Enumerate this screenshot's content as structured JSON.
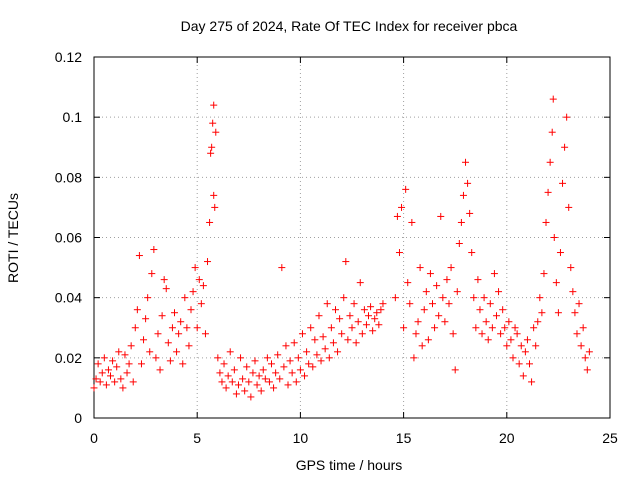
{
  "chart_data": {
    "type": "scatter",
    "title": "Day 275 of 2024, Rate Of TEC Index for receiver pbca",
    "xlabel": "GPS time / hours",
    "ylabel": "ROTI / TECUs",
    "xlim": [
      0,
      25
    ],
    "ylim": [
      0,
      0.12
    ],
    "xticks": [
      0,
      5,
      10,
      15,
      20,
      25
    ],
    "xtick_labels": [
      "0",
      "5",
      "10",
      "15",
      "20",
      "25"
    ],
    "yticks": [
      0,
      0.02,
      0.04,
      0.06,
      0.08,
      0.1,
      0.12
    ],
    "ytick_labels": [
      "0",
      "0.02",
      "0.04",
      "0.06",
      "0.08",
      "0.1",
      "0.12"
    ],
    "grid": true,
    "marker": "+",
    "color": "#ff0000",
    "series": [
      {
        "name": "ROTI",
        "points": [
          [
            0.0,
            0.01
          ],
          [
            0.1,
            0.013
          ],
          [
            0.2,
            0.018
          ],
          [
            0.3,
            0.012
          ],
          [
            0.4,
            0.015
          ],
          [
            0.5,
            0.02
          ],
          [
            0.6,
            0.011
          ],
          [
            0.7,
            0.016
          ],
          [
            0.8,
            0.014
          ],
          [
            0.9,
            0.019
          ],
          [
            1.0,
            0.012
          ],
          [
            1.1,
            0.017
          ],
          [
            1.2,
            0.022
          ],
          [
            1.3,
            0.013
          ],
          [
            1.4,
            0.01
          ],
          [
            1.5,
            0.021
          ],
          [
            1.6,
            0.015
          ],
          [
            1.7,
            0.018
          ],
          [
            1.8,
            0.024
          ],
          [
            1.9,
            0.012
          ],
          [
            2.0,
            0.03
          ],
          [
            2.1,
            0.036
          ],
          [
            2.2,
            0.054
          ],
          [
            2.3,
            0.018
          ],
          [
            2.4,
            0.026
          ],
          [
            2.5,
            0.033
          ],
          [
            2.6,
            0.04
          ],
          [
            2.7,
            0.022
          ],
          [
            2.8,
            0.048
          ],
          [
            2.9,
            0.056
          ],
          [
            3.0,
            0.02
          ],
          [
            3.1,
            0.028
          ],
          [
            3.2,
            0.016
          ],
          [
            3.3,
            0.034
          ],
          [
            3.4,
            0.046
          ],
          [
            3.5,
            0.043
          ],
          [
            3.6,
            0.025
          ],
          [
            3.7,
            0.019
          ],
          [
            3.8,
            0.03
          ],
          [
            3.9,
            0.035
          ],
          [
            4.0,
            0.022
          ],
          [
            4.1,
            0.028
          ],
          [
            4.2,
            0.032
          ],
          [
            4.3,
            0.018
          ],
          [
            4.4,
            0.04
          ],
          [
            4.5,
            0.03
          ],
          [
            4.6,
            0.024
          ],
          [
            4.7,
            0.036
          ],
          [
            4.8,
            0.042
          ],
          [
            4.9,
            0.05
          ],
          [
            5.0,
            0.03
          ],
          [
            5.1,
            0.046
          ],
          [
            5.2,
            0.038
          ],
          [
            5.3,
            0.044
          ],
          [
            5.4,
            0.028
          ],
          [
            5.5,
            0.052
          ],
          [
            5.6,
            0.065
          ],
          [
            5.7,
            0.09
          ],
          [
            5.8,
            0.104
          ],
          [
            5.9,
            0.095
          ],
          [
            5.65,
            0.088
          ],
          [
            5.75,
            0.098
          ],
          [
            5.8,
            0.074
          ],
          [
            5.85,
            0.07
          ],
          [
            6.0,
            0.02
          ],
          [
            6.1,
            0.015
          ],
          [
            6.2,
            0.012
          ],
          [
            6.3,
            0.018
          ],
          [
            6.4,
            0.01
          ],
          [
            6.5,
            0.014
          ],
          [
            6.6,
            0.022
          ],
          [
            6.7,
            0.012
          ],
          [
            6.8,
            0.016
          ],
          [
            6.9,
            0.008
          ],
          [
            7.0,
            0.011
          ],
          [
            7.1,
            0.02
          ],
          [
            7.2,
            0.013
          ],
          [
            7.3,
            0.009
          ],
          [
            7.4,
            0.017
          ],
          [
            7.5,
            0.012
          ],
          [
            7.6,
            0.007
          ],
          [
            7.7,
            0.015
          ],
          [
            7.8,
            0.019
          ],
          [
            7.9,
            0.011
          ],
          [
            8.0,
            0.014
          ],
          [
            8.1,
            0.009
          ],
          [
            8.2,
            0.016
          ],
          [
            8.3,
            0.013
          ],
          [
            8.4,
            0.02
          ],
          [
            8.5,
            0.012
          ],
          [
            8.6,
            0.018
          ],
          [
            8.7,
            0.01
          ],
          [
            8.8,
            0.015
          ],
          [
            8.9,
            0.021
          ],
          [
            9.0,
            0.013
          ],
          [
            9.1,
            0.05
          ],
          [
            9.2,
            0.017
          ],
          [
            9.3,
            0.024
          ],
          [
            9.4,
            0.011
          ],
          [
            9.5,
            0.019
          ],
          [
            9.6,
            0.015
          ],
          [
            9.7,
            0.025
          ],
          [
            9.8,
            0.012
          ],
          [
            9.9,
            0.02
          ],
          [
            10.0,
            0.016
          ],
          [
            10.1,
            0.028
          ],
          [
            10.2,
            0.014
          ],
          [
            10.3,
            0.022
          ],
          [
            10.4,
            0.018
          ],
          [
            10.5,
            0.03
          ],
          [
            10.6,
            0.017
          ],
          [
            10.7,
            0.026
          ],
          [
            10.8,
            0.021
          ],
          [
            10.9,
            0.034
          ],
          [
            11.0,
            0.019
          ],
          [
            11.1,
            0.027
          ],
          [
            11.2,
            0.023
          ],
          [
            11.3,
            0.038
          ],
          [
            11.4,
            0.02
          ],
          [
            11.5,
            0.03
          ],
          [
            11.6,
            0.025
          ],
          [
            11.7,
            0.036
          ],
          [
            11.8,
            0.022
          ],
          [
            11.9,
            0.033
          ],
          [
            12.0,
            0.028
          ],
          [
            12.1,
            0.04
          ],
          [
            12.2,
            0.052
          ],
          [
            12.3,
            0.026
          ],
          [
            12.4,
            0.034
          ],
          [
            12.5,
            0.03
          ],
          [
            12.6,
            0.038
          ],
          [
            12.7,
            0.025
          ],
          [
            12.8,
            0.032
          ],
          [
            12.9,
            0.045
          ],
          [
            13.0,
            0.028
          ],
          [
            13.1,
            0.036
          ],
          [
            13.2,
            0.031
          ],
          [
            13.3,
            0.034
          ],
          [
            13.4,
            0.037
          ],
          [
            13.5,
            0.029
          ],
          [
            13.6,
            0.033
          ],
          [
            13.7,
            0.035
          ],
          [
            13.8,
            0.031
          ],
          [
            13.9,
            0.036
          ],
          [
            14.0,
            0.038
          ],
          [
            14.6,
            0.04
          ],
          [
            14.7,
            0.067
          ],
          [
            14.8,
            0.055
          ],
          [
            14.9,
            0.07
          ],
          [
            15.0,
            0.03
          ],
          [
            15.1,
            0.076
          ],
          [
            15.2,
            0.045
          ],
          [
            15.3,
            0.038
          ],
          [
            15.4,
            0.065
          ],
          [
            15.5,
            0.02
          ],
          [
            15.6,
            0.028
          ],
          [
            15.7,
            0.032
          ],
          [
            15.8,
            0.05
          ],
          [
            15.9,
            0.024
          ],
          [
            16.0,
            0.036
          ],
          [
            16.1,
            0.042
          ],
          [
            16.2,
            0.026
          ],
          [
            16.3,
            0.048
          ],
          [
            16.4,
            0.038
          ],
          [
            16.5,
            0.03
          ],
          [
            16.6,
            0.044
          ],
          [
            16.7,
            0.034
          ],
          [
            16.8,
            0.067
          ],
          [
            16.9,
            0.04
          ],
          [
            17.0,
            0.032
          ],
          [
            17.1,
            0.046
          ],
          [
            17.2,
            0.038
          ],
          [
            17.3,
            0.05
          ],
          [
            17.4,
            0.028
          ],
          [
            17.5,
            0.016
          ],
          [
            17.6,
            0.042
          ],
          [
            17.7,
            0.058
          ],
          [
            17.8,
            0.065
          ],
          [
            17.9,
            0.074
          ],
          [
            18.0,
            0.085
          ],
          [
            18.1,
            0.078
          ],
          [
            18.2,
            0.068
          ],
          [
            18.3,
            0.055
          ],
          [
            18.4,
            0.04
          ],
          [
            18.5,
            0.03
          ],
          [
            18.6,
            0.046
          ],
          [
            18.7,
            0.036
          ],
          [
            18.8,
            0.028
          ],
          [
            18.9,
            0.04
          ],
          [
            19.0,
            0.032
          ],
          [
            19.1,
            0.026
          ],
          [
            19.2,
            0.038
          ],
          [
            19.3,
            0.03
          ],
          [
            19.4,
            0.048
          ],
          [
            19.5,
            0.034
          ],
          [
            19.6,
            0.042
          ],
          [
            19.7,
            0.028
          ],
          [
            19.8,
            0.036
          ],
          [
            19.9,
            0.03
          ],
          [
            20.0,
            0.024
          ],
          [
            20.1,
            0.032
          ],
          [
            20.2,
            0.026
          ],
          [
            20.3,
            0.02
          ],
          [
            20.4,
            0.03
          ],
          [
            20.5,
            0.028
          ],
          [
            20.6,
            0.018
          ],
          [
            20.7,
            0.024
          ],
          [
            20.8,
            0.014
          ],
          [
            20.9,
            0.022
          ],
          [
            21.0,
            0.026
          ],
          [
            21.1,
            0.018
          ],
          [
            21.2,
            0.012
          ],
          [
            21.3,
            0.03
          ],
          [
            21.4,
            0.024
          ],
          [
            21.5,
            0.032
          ],
          [
            21.6,
            0.04
          ],
          [
            21.7,
            0.035
          ],
          [
            21.8,
            0.048
          ],
          [
            21.9,
            0.065
          ],
          [
            22.0,
            0.075
          ],
          [
            22.1,
            0.085
          ],
          [
            22.2,
            0.095
          ],
          [
            22.25,
            0.106
          ],
          [
            22.3,
            0.06
          ],
          [
            22.4,
            0.045
          ],
          [
            22.5,
            0.035
          ],
          [
            22.6,
            0.055
          ],
          [
            22.7,
            0.078
          ],
          [
            22.8,
            0.09
          ],
          [
            22.9,
            0.1
          ],
          [
            23.0,
            0.07
          ],
          [
            23.1,
            0.05
          ],
          [
            23.2,
            0.042
          ],
          [
            23.3,
            0.035
          ],
          [
            23.4,
            0.028
          ],
          [
            23.5,
            0.038
          ],
          [
            23.6,
            0.024
          ],
          [
            23.7,
            0.03
          ],
          [
            23.8,
            0.02
          ],
          [
            23.9,
            0.016
          ],
          [
            24.0,
            0.022
          ]
        ]
      }
    ]
  }
}
